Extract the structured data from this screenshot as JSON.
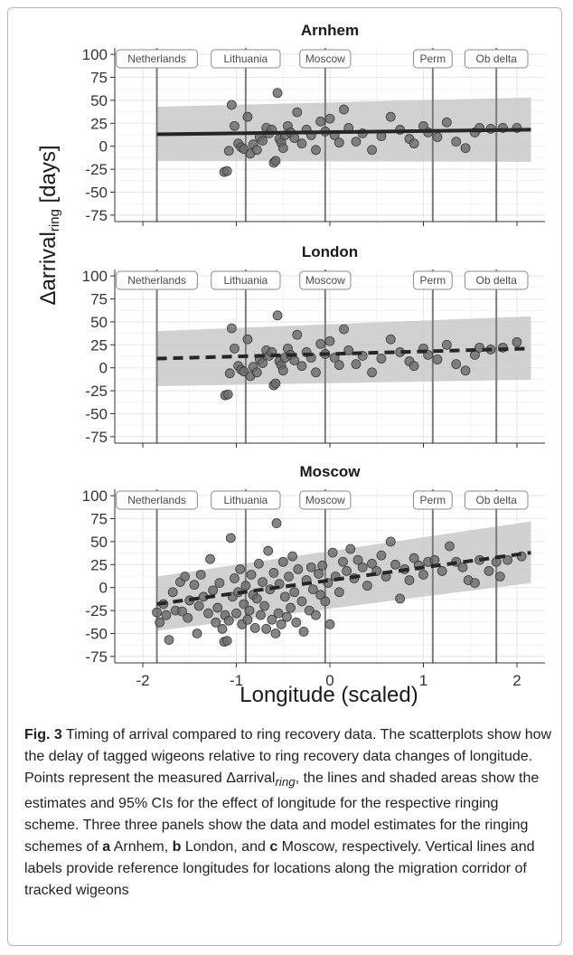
{
  "chart_data": [
    {
      "type": "scatter",
      "title": "Arnhem",
      "xlim": [
        -2.3,
        2.3
      ],
      "ylim": [
        -82,
        107
      ],
      "x_ticks": [
        -2,
        -1,
        0,
        1,
        2
      ],
      "y_ticks": [
        100,
        75,
        50,
        25,
        0,
        -25,
        -50,
        -75
      ],
      "y_tick_labels": [
        "100",
        "75",
        "50",
        "25",
        "0",
        "-25",
        "-50",
        "-75"
      ],
      "grid": true,
      "ref_lines": [
        {
          "name": "Netherlands",
          "x": -1.85
        },
        {
          "name": "Lithuania",
          "x": -0.9
        },
        {
          "name": "Moscow",
          "x": -0.05
        },
        {
          "name": "Perm",
          "x": 1.1
        },
        {
          "name": "Ob delta",
          "x": 1.78
        }
      ],
      "fit": {
        "style": "solid",
        "x": [
          -1.85,
          2.15
        ],
        "y": [
          13,
          18
        ]
      },
      "band": {
        "x": [
          -1.85,
          2.15
        ],
        "lower": [
          -16,
          -17
        ],
        "upper": [
          43,
          53
        ]
      },
      "points": [
        {
          "x": -1.13,
          "y": -28
        },
        {
          "x": -1.1,
          "y": -27
        },
        {
          "x": -1.08,
          "y": -5
        },
        {
          "x": -1.05,
          "y": 45
        },
        {
          "x": -1.02,
          "y": 22
        },
        {
          "x": -0.98,
          "y": 3
        },
        {
          "x": -0.95,
          "y": -1
        },
        {
          "x": -0.92,
          "y": -3
        },
        {
          "x": -0.88,
          "y": 32
        },
        {
          "x": -0.85,
          "y": -8
        },
        {
          "x": -0.82,
          "y": 2
        },
        {
          "x": -0.78,
          "y": -4
        },
        {
          "x": -0.75,
          "y": 10
        },
        {
          "x": -0.72,
          "y": 6
        },
        {
          "x": -0.68,
          "y": 20
        },
        {
          "x": -0.65,
          "y": 14
        },
        {
          "x": -0.62,
          "y": 18
        },
        {
          "x": -0.6,
          "y": -18
        },
        {
          "x": -0.58,
          "y": -16
        },
        {
          "x": -0.56,
          "y": 58
        },
        {
          "x": -0.54,
          "y": 8
        },
        {
          "x": -0.52,
          "y": 4
        },
        {
          "x": -0.5,
          "y": -2
        },
        {
          "x": -0.48,
          "y": 12
        },
        {
          "x": -0.45,
          "y": 22
        },
        {
          "x": -0.42,
          "y": 15
        },
        {
          "x": -0.38,
          "y": 9
        },
        {
          "x": -0.35,
          "y": 37
        },
        {
          "x": -0.3,
          "y": 3
        },
        {
          "x": -0.25,
          "y": 18
        },
        {
          "x": -0.2,
          "y": 12
        },
        {
          "x": -0.15,
          "y": -4
        },
        {
          "x": -0.1,
          "y": 27
        },
        {
          "x": -0.05,
          "y": 16
        },
        {
          "x": 0.0,
          "y": 30
        },
        {
          "x": 0.05,
          "y": 12
        },
        {
          "x": 0.1,
          "y": 4
        },
        {
          "x": 0.15,
          "y": 40
        },
        {
          "x": 0.2,
          "y": 20
        },
        {
          "x": 0.28,
          "y": 5
        },
        {
          "x": 0.35,
          "y": 14
        },
        {
          "x": 0.45,
          "y": -4
        },
        {
          "x": 0.55,
          "y": 11
        },
        {
          "x": 0.65,
          "y": 32
        },
        {
          "x": 0.75,
          "y": 18
        },
        {
          "x": 0.85,
          "y": 8
        },
        {
          "x": 0.9,
          "y": 3
        },
        {
          "x": 1.0,
          "y": 22
        },
        {
          "x": 1.05,
          "y": 15
        },
        {
          "x": 1.15,
          "y": 10
        },
        {
          "x": 1.25,
          "y": 26
        },
        {
          "x": 1.35,
          "y": 5
        },
        {
          "x": 1.45,
          "y": -2
        },
        {
          "x": 1.55,
          "y": 15
        },
        {
          "x": 1.6,
          "y": 20
        },
        {
          "x": 1.72,
          "y": 19
        },
        {
          "x": 1.85,
          "y": 20
        },
        {
          "x": 2.0,
          "y": 20
        }
      ]
    },
    {
      "type": "scatter",
      "title": "London",
      "xlim": [
        -2.3,
        2.3
      ],
      "ylim": [
        -82,
        107
      ],
      "x_ticks": [
        -2,
        -1,
        0,
        1,
        2
      ],
      "y_ticks": [
        100,
        75,
        50,
        25,
        0,
        -25,
        -50,
        -75
      ],
      "y_tick_labels": [
        "100",
        "75",
        "50",
        "25",
        "0",
        "-25",
        "-50",
        "-75"
      ],
      "grid": true,
      "ref_lines": [
        {
          "name": "Netherlands",
          "x": -1.85
        },
        {
          "name": "Lithuania",
          "x": -0.9
        },
        {
          "name": "Moscow",
          "x": -0.05
        },
        {
          "name": "Perm",
          "x": 1.1
        },
        {
          "name": "Ob delta",
          "x": 1.78
        }
      ],
      "fit": {
        "style": "dashed",
        "x": [
          -1.85,
          2.15
        ],
        "y": [
          10,
          21
        ]
      },
      "band": {
        "x": [
          -1.85,
          2.15
        ],
        "lower": [
          -20,
          -13
        ],
        "upper": [
          40,
          56
        ]
      },
      "points": [
        {
          "x": -1.12,
          "y": -30
        },
        {
          "x": -1.09,
          "y": -29
        },
        {
          "x": -1.07,
          "y": -6
        },
        {
          "x": -1.05,
          "y": 43
        },
        {
          "x": -1.02,
          "y": 21
        },
        {
          "x": -0.98,
          "y": 2
        },
        {
          "x": -0.95,
          "y": -2
        },
        {
          "x": -0.92,
          "y": -4
        },
        {
          "x": -0.88,
          "y": 31
        },
        {
          "x": -0.85,
          "y": -9
        },
        {
          "x": -0.82,
          "y": 1
        },
        {
          "x": -0.78,
          "y": -5
        },
        {
          "x": -0.75,
          "y": 9
        },
        {
          "x": -0.72,
          "y": 5
        },
        {
          "x": -0.68,
          "y": 19
        },
        {
          "x": -0.65,
          "y": 13
        },
        {
          "x": -0.62,
          "y": 17
        },
        {
          "x": -0.6,
          "y": -19
        },
        {
          "x": -0.58,
          "y": -17
        },
        {
          "x": -0.56,
          "y": 57
        },
        {
          "x": -0.54,
          "y": 7
        },
        {
          "x": -0.52,
          "y": 3
        },
        {
          "x": -0.5,
          "y": -3
        },
        {
          "x": -0.48,
          "y": 11
        },
        {
          "x": -0.45,
          "y": 21
        },
        {
          "x": -0.42,
          "y": 14
        },
        {
          "x": -0.38,
          "y": 8
        },
        {
          "x": -0.35,
          "y": 36
        },
        {
          "x": -0.3,
          "y": 2
        },
        {
          "x": -0.25,
          "y": 17
        },
        {
          "x": -0.2,
          "y": 11
        },
        {
          "x": -0.15,
          "y": -5
        },
        {
          "x": -0.1,
          "y": 26
        },
        {
          "x": -0.05,
          "y": 15
        },
        {
          "x": 0.0,
          "y": 29
        },
        {
          "x": 0.05,
          "y": 11
        },
        {
          "x": 0.1,
          "y": 3
        },
        {
          "x": 0.15,
          "y": 42
        },
        {
          "x": 0.2,
          "y": 19
        },
        {
          "x": 0.28,
          "y": 4
        },
        {
          "x": 0.35,
          "y": 13
        },
        {
          "x": 0.45,
          "y": -5
        },
        {
          "x": 0.55,
          "y": 10
        },
        {
          "x": 0.65,
          "y": 31
        },
        {
          "x": 0.75,
          "y": 17
        },
        {
          "x": 0.85,
          "y": 7
        },
        {
          "x": 0.9,
          "y": 2
        },
        {
          "x": 1.0,
          "y": 21
        },
        {
          "x": 1.05,
          "y": 14
        },
        {
          "x": 1.15,
          "y": 9
        },
        {
          "x": 1.25,
          "y": 25
        },
        {
          "x": 1.35,
          "y": 4
        },
        {
          "x": 1.45,
          "y": -3
        },
        {
          "x": 1.55,
          "y": 14
        },
        {
          "x": 1.6,
          "y": 22
        },
        {
          "x": 1.72,
          "y": 20
        },
        {
          "x": 1.85,
          "y": 22
        },
        {
          "x": 2.0,
          "y": 28
        }
      ]
    },
    {
      "type": "scatter",
      "title": "Moscow",
      "xlim": [
        -2.3,
        2.3
      ],
      "ylim": [
        -82,
        107
      ],
      "x_ticks": [
        -2,
        -1,
        0,
        1,
        2
      ],
      "x_tick_labels": [
        "-2",
        "-1",
        "0",
        "1",
        "2"
      ],
      "y_ticks": [
        100,
        75,
        50,
        25,
        0,
        -25,
        -50,
        -75
      ],
      "y_tick_labels": [
        "100",
        "75",
        "50",
        "25",
        "0",
        "-25",
        "-50",
        "-75"
      ],
      "grid": true,
      "ref_lines": [
        {
          "name": "Netherlands",
          "x": -1.85
        },
        {
          "name": "Lithuania",
          "x": -0.9
        },
        {
          "name": "Moscow",
          "x": -0.05
        },
        {
          "name": "Perm",
          "x": 1.1
        },
        {
          "name": "Ob delta",
          "x": 1.78
        }
      ],
      "fit": {
        "style": "dashed",
        "x": [
          -1.85,
          2.15
        ],
        "y": [
          -18,
          38
        ]
      },
      "band": {
        "x": [
          -1.85,
          2.15
        ],
        "lower": [
          -47,
          5
        ],
        "upper": [
          12,
          72
        ]
      },
      "points": [
        {
          "x": -1.85,
          "y": -27
        },
        {
          "x": -1.82,
          "y": -38
        },
        {
          "x": -1.78,
          "y": -18
        },
        {
          "x": -1.75,
          "y": -30
        },
        {
          "x": -1.72,
          "y": -57
        },
        {
          "x": -1.68,
          "y": -5
        },
        {
          "x": -1.65,
          "y": -25
        },
        {
          "x": -1.6,
          "y": 6
        },
        {
          "x": -1.58,
          "y": -26
        },
        {
          "x": -1.55,
          "y": 12
        },
        {
          "x": -1.52,
          "y": -33
        },
        {
          "x": -1.5,
          "y": -14
        },
        {
          "x": -1.45,
          "y": 3
        },
        {
          "x": -1.42,
          "y": -50
        },
        {
          "x": -1.4,
          "y": -20
        },
        {
          "x": -1.38,
          "y": 14
        },
        {
          "x": -1.35,
          "y": -10
        },
        {
          "x": -1.3,
          "y": -28
        },
        {
          "x": -1.28,
          "y": 31
        },
        {
          "x": -1.25,
          "y": -3
        },
        {
          "x": -1.22,
          "y": -38
        },
        {
          "x": -1.2,
          "y": -22
        },
        {
          "x": -1.18,
          "y": 5
        },
        {
          "x": -1.15,
          "y": -45
        },
        {
          "x": -1.13,
          "y": -59
        },
        {
          "x": -1.12,
          "y": -30
        },
        {
          "x": -1.1,
          "y": -58
        },
        {
          "x": -1.08,
          "y": -36
        },
        {
          "x": -1.06,
          "y": 54
        },
        {
          "x": -1.04,
          "y": -10
        },
        {
          "x": -1.02,
          "y": 10
        },
        {
          "x": -1.0,
          "y": -28
        },
        {
          "x": -0.98,
          "y": -5
        },
        {
          "x": -0.96,
          "y": 20
        },
        {
          "x": -0.94,
          "y": -40
        },
        {
          "x": -0.92,
          "y": -18
        },
        {
          "x": -0.9,
          "y": 2
        },
        {
          "x": -0.88,
          "y": -35
        },
        {
          "x": -0.86,
          "y": -25
        },
        {
          "x": -0.84,
          "y": 14
        },
        {
          "x": -0.82,
          "y": -8
        },
        {
          "x": -0.8,
          "y": -44
        },
        {
          "x": -0.78,
          "y": -12
        },
        {
          "x": -0.76,
          "y": 26
        },
        {
          "x": -0.74,
          "y": -30
        },
        {
          "x": -0.72,
          "y": 6
        },
        {
          "x": -0.7,
          "y": -20
        },
        {
          "x": -0.68,
          "y": -45
        },
        {
          "x": -0.66,
          "y": 40
        },
        {
          "x": -0.64,
          "y": -2
        },
        {
          "x": -0.62,
          "y": -35
        },
        {
          "x": -0.6,
          "y": 16
        },
        {
          "x": -0.58,
          "y": -50
        },
        {
          "x": -0.57,
          "y": 70
        },
        {
          "x": -0.55,
          "y": -28
        },
        {
          "x": -0.54,
          "y": 4
        },
        {
          "x": -0.52,
          "y": -40
        },
        {
          "x": -0.5,
          "y": 28
        },
        {
          "x": -0.48,
          "y": -10
        },
        {
          "x": -0.46,
          "y": -32
        },
        {
          "x": -0.44,
          "y": 12
        },
        {
          "x": -0.42,
          "y": -22
        },
        {
          "x": -0.4,
          "y": 34
        },
        {
          "x": -0.38,
          "y": -5
        },
        {
          "x": -0.36,
          "y": -38
        },
        {
          "x": -0.34,
          "y": 20
        },
        {
          "x": -0.3,
          "y": -15
        },
        {
          "x": -0.28,
          "y": -48
        },
        {
          "x": -0.25,
          "y": 8
        },
        {
          "x": -0.22,
          "y": -25
        },
        {
          "x": -0.2,
          "y": 22
        },
        {
          "x": -0.18,
          "y": -2
        },
        {
          "x": -0.15,
          "y": -30
        },
        {
          "x": -0.12,
          "y": 15
        },
        {
          "x": -0.1,
          "y": -8
        },
        {
          "x": -0.08,
          "y": 24
        },
        {
          "x": -0.05,
          "y": -15
        },
        {
          "x": -0.02,
          "y": 5
        },
        {
          "x": 0.0,
          "y": -40
        },
        {
          "x": 0.03,
          "y": 38
        },
        {
          "x": 0.06,
          "y": 12
        },
        {
          "x": 0.1,
          "y": -5
        },
        {
          "x": 0.14,
          "y": 28
        },
        {
          "x": 0.18,
          "y": 18
        },
        {
          "x": 0.22,
          "y": 42
        },
        {
          "x": 0.26,
          "y": 10
        },
        {
          "x": 0.3,
          "y": 30
        },
        {
          "x": 0.35,
          "y": 22
        },
        {
          "x": 0.4,
          "y": 2
        },
        {
          "x": 0.45,
          "y": 26
        },
        {
          "x": 0.5,
          "y": 18
        },
        {
          "x": 0.55,
          "y": 35
        },
        {
          "x": 0.6,
          "y": 12
        },
        {
          "x": 0.65,
          "y": 50
        },
        {
          "x": 0.7,
          "y": 25
        },
        {
          "x": 0.75,
          "y": -12
        },
        {
          "x": 0.8,
          "y": 20
        },
        {
          "x": 0.85,
          "y": 8
        },
        {
          "x": 0.9,
          "y": 32
        },
        {
          "x": 0.95,
          "y": 24
        },
        {
          "x": 1.0,
          "y": 14
        },
        {
          "x": 1.05,
          "y": 28
        },
        {
          "x": 1.12,
          "y": 30
        },
        {
          "x": 1.2,
          "y": 18
        },
        {
          "x": 1.28,
          "y": 45
        },
        {
          "x": 1.35,
          "y": 28
        },
        {
          "x": 1.42,
          "y": 22
        },
        {
          "x": 1.48,
          "y": 8
        },
        {
          "x": 1.55,
          "y": 5
        },
        {
          "x": 1.6,
          "y": 30
        },
        {
          "x": 1.7,
          "y": 18
        },
        {
          "x": 1.78,
          "y": 28
        },
        {
          "x": 1.82,
          "y": 12
        },
        {
          "x": 1.9,
          "y": 30
        },
        {
          "x": 2.05,
          "y": 34
        }
      ]
    }
  ],
  "axes": {
    "ylabel_prefix": "Δarrival",
    "ylabel_sub": "ring",
    "ylabel_suffix": " [days]",
    "xlabel": "Longitude (scaled)"
  },
  "caption": {
    "fig_label": "Fig. 3",
    "text1": "  Timing of arrival compared to ring recovery data. The scatterplots show how the delay of tagged wigeons relative to ring recovery data changes of longitude. Points represent the measured Δarrival",
    "text1_sub": "ring",
    "text2": ", the lines and shaded areas show the estimates and 95% CIs for the effect of longitude for the respective ringing scheme. Three three panels show the data and model estimates for the ringing schemes of ",
    "letter_a": "a",
    "scheme_a": " Arnhem, ",
    "letter_b": "b",
    "scheme_b": " London, and ",
    "letter_c": "c",
    "text3": " Moscow, respectively. Vertical lines and labels provide reference longitudes for locations along the migration corridor of tracked wigeons"
  },
  "colors": {
    "grid": "#e9e9e9",
    "band": "#c9c9c9",
    "point_fill": "#6b6b6b",
    "point_stroke": "#3a3a3a",
    "ref_line": "#7a7a7a",
    "fit": "#262626"
  }
}
